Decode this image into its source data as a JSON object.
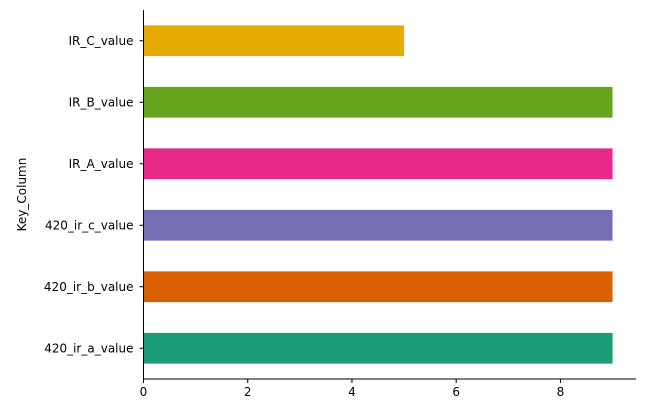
{
  "chart_data": {
    "type": "bar",
    "orientation": "horizontal",
    "categories": [
      "420_ir_a_value",
      "420_ir_b_value",
      "420_ir_c_value",
      "IR_A_value",
      "IR_B_value",
      "IR_C_value"
    ],
    "values": [
      9,
      9,
      9,
      9,
      9,
      5
    ],
    "colors": [
      "#1b9e77",
      "#d95f02",
      "#7570b3",
      "#e7298a",
      "#66a61e",
      "#e6ab02"
    ],
    "xlabel": "",
    "ylabel": "Key_Column",
    "xlim": [
      0,
      9.45
    ],
    "xticks": [
      0,
      2,
      4,
      6,
      8
    ],
    "grid": false,
    "legend": "none",
    "spines": "left-bottom"
  }
}
